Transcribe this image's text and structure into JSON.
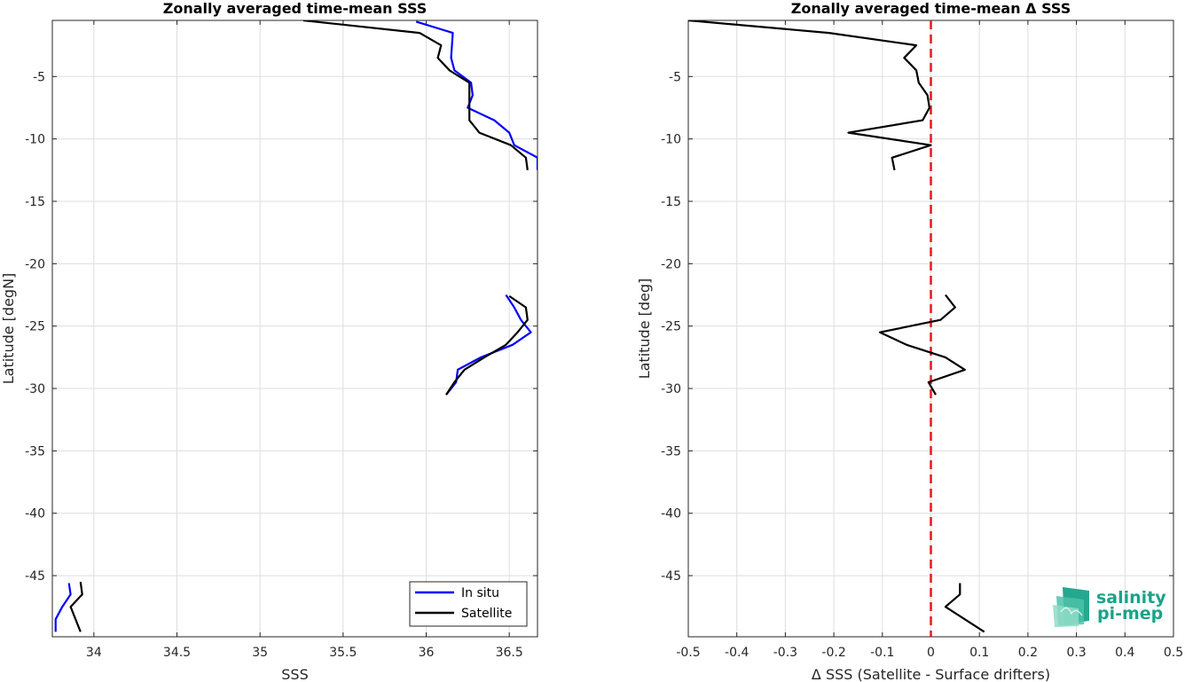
{
  "colors": {
    "in_situ": "#0000ff",
    "satellite": "#000000",
    "zero_line": "#e31a1c",
    "logo": "#1aa38a"
  },
  "logo": {
    "line1": "salinity",
    "line2": "pi-mep",
    "icon": "salinity-waves-logo"
  },
  "chart_data": [
    {
      "type": "line",
      "title": "Zonally averaged time-mean SSS",
      "xlabel": "SSS",
      "ylabel": "Latitude [degN]",
      "xlim": [
        33.75,
        36.67
      ],
      "ylim": [
        -49.9,
        -0.5
      ],
      "xticks": [
        34,
        34.5,
        35,
        35.5,
        36,
        36.5
      ],
      "xtick_labels": [
        "34",
        "34.5",
        "35",
        "35.5",
        "36",
        "36.5"
      ],
      "yticks": [
        -5,
        -10,
        -15,
        -20,
        -25,
        -30,
        -35,
        -40,
        -45
      ],
      "ytick_labels": [
        "-5",
        "-10",
        "-15",
        "-20",
        "-25",
        "-30",
        "-35",
        "-40",
        "-45"
      ],
      "grid": true,
      "legend_position": "bottom-right",
      "series": [
        {
          "name": "In situ",
          "color_key": "in_situ",
          "segments": [
            [
              [
                35.94,
                -0.6
              ],
              [
                36.16,
                -1.5
              ],
              [
                36.15,
                -3.5
              ],
              [
                36.17,
                -4.5
              ],
              [
                36.27,
                -5.5
              ],
              [
                36.28,
                -6.5
              ],
              [
                36.25,
                -7.5
              ],
              [
                36.41,
                -8.5
              ],
              [
                36.5,
                -9.5
              ],
              [
                36.53,
                -10.5
              ],
              [
                36.67,
                -11.5
              ],
              [
                36.67,
                -12.5
              ]
            ],
            [
              [
                36.48,
                -22.5
              ],
              [
                36.53,
                -23.5
              ],
              [
                36.57,
                -24.5
              ],
              [
                36.63,
                -25.5
              ],
              [
                36.52,
                -26.5
              ],
              [
                36.33,
                -27.5
              ],
              [
                36.19,
                -28.5
              ],
              [
                36.18,
                -29.5
              ],
              [
                36.12,
                -30.5
              ]
            ],
            [
              [
                33.85,
                -45.6
              ],
              [
                33.86,
                -46.5
              ],
              [
                33.81,
                -47.5
              ],
              [
                33.77,
                -48.5
              ],
              [
                33.77,
                -49.5
              ]
            ]
          ]
        },
        {
          "name": "Satellite",
          "color_key": "satellite",
          "segments": [
            [
              [
                35.26,
                -0.5
              ],
              [
                35.96,
                -1.5
              ],
              [
                36.09,
                -2.5
              ],
              [
                36.07,
                -3.5
              ],
              [
                36.14,
                -4.5
              ],
              [
                36.26,
                -5.5
              ],
              [
                36.26,
                -6.5
              ],
              [
                36.26,
                -7.5
              ],
              [
                36.26,
                -8.5
              ],
              [
                36.32,
                -9.5
              ],
              [
                36.51,
                -10.5
              ],
              [
                36.6,
                -11.5
              ],
              [
                36.61,
                -12.5
              ]
            ],
            [
              [
                36.5,
                -22.6
              ],
              [
                36.6,
                -23.5
              ],
              [
                36.61,
                -24.5
              ],
              [
                36.55,
                -25.5
              ],
              [
                36.48,
                -26.5
              ],
              [
                36.35,
                -27.5
              ],
              [
                36.23,
                -28.5
              ],
              [
                36.17,
                -29.5
              ],
              [
                36.12,
                -30.5
              ]
            ],
            [
              [
                33.92,
                -45.5
              ],
              [
                33.93,
                -46.5
              ],
              [
                33.86,
                -47.5
              ],
              [
                33.89,
                -48.5
              ],
              [
                33.92,
                -49.5
              ]
            ]
          ]
        }
      ]
    },
    {
      "type": "line",
      "title": "Zonally averaged time-mean Δ SSS",
      "xlabel": "Δ SSS (Satellite - Surface drifters)",
      "ylabel": "Latitude [deg]",
      "xlim": [
        -0.5,
        0.5
      ],
      "ylim": [
        -49.9,
        -0.5
      ],
      "xticks": [
        -0.5,
        -0.4,
        -0.3,
        -0.2,
        -0.1,
        0,
        0.1,
        0.2,
        0.3,
        0.4,
        0.5
      ],
      "xtick_labels": [
        "-0.5",
        "-0.4",
        "-0.3",
        "-0.2",
        "-0.1",
        "0",
        "0.1",
        "0.2",
        "0.3",
        "0.4",
        "0.5"
      ],
      "yticks": [
        -5,
        -10,
        -15,
        -20,
        -25,
        -30,
        -35,
        -40,
        -45
      ],
      "ytick_labels": [
        "-5",
        "-10",
        "-15",
        "-20",
        "-25",
        "-30",
        "-35",
        "-40",
        "-45"
      ],
      "grid": true,
      "reference_line": {
        "x": 0,
        "style": "dashed",
        "color_key": "zero_line"
      },
      "series": [
        {
          "color_key": "satellite",
          "segments": [
            [
              [
                -0.5,
                -0.5
              ],
              [
                -0.21,
                -1.5
              ],
              [
                -0.03,
                -2.5
              ],
              [
                -0.055,
                -3.5
              ],
              [
                -0.03,
                -4.5
              ],
              [
                -0.025,
                -5.5
              ],
              [
                -0.007,
                -6.5
              ],
              [
                -0.003,
                -7.5
              ],
              [
                -0.017,
                -8.5
              ],
              [
                -0.17,
                -9.5
              ],
              [
                0,
                -10.5
              ],
              [
                -0.08,
                -11.5
              ],
              [
                -0.075,
                -12.5
              ]
            ],
            [
              [
                0.03,
                -22.5
              ],
              [
                0.05,
                -23.5
              ],
              [
                0.02,
                -24.5
              ],
              [
                -0.105,
                -25.5
              ],
              [
                -0.05,
                -26.5
              ],
              [
                0.03,
                -27.5
              ],
              [
                0.07,
                -28.5
              ],
              [
                -0.005,
                -29.5
              ],
              [
                0.01,
                -30.5
              ]
            ],
            [
              [
                0.06,
                -45.6
              ],
              [
                0.06,
                -46.5
              ],
              [
                0.03,
                -47.5
              ],
              [
                0.07,
                -48.5
              ],
              [
                0.11,
                -49.5
              ]
            ]
          ]
        }
      ]
    }
  ]
}
